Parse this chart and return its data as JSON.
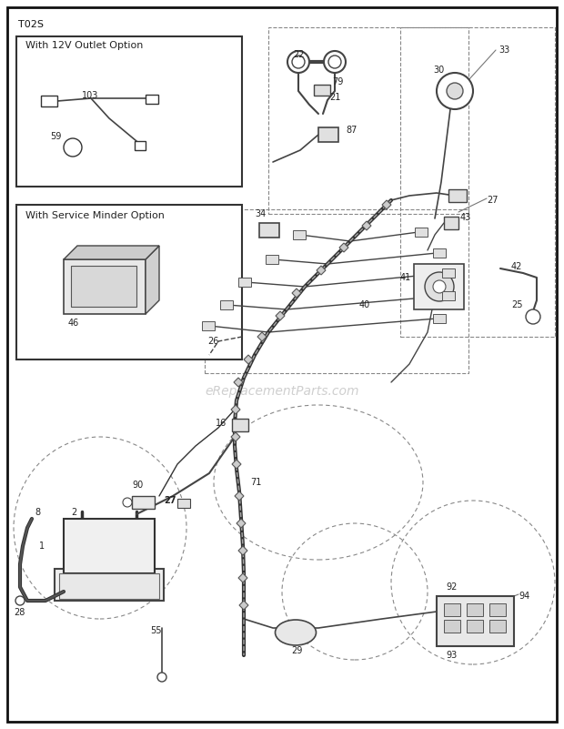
{
  "title": "T02S",
  "bg_color": "#ffffff",
  "fig_width": 6.2,
  "fig_height": 8.01,
  "watermark": "eReplacementParts.com"
}
